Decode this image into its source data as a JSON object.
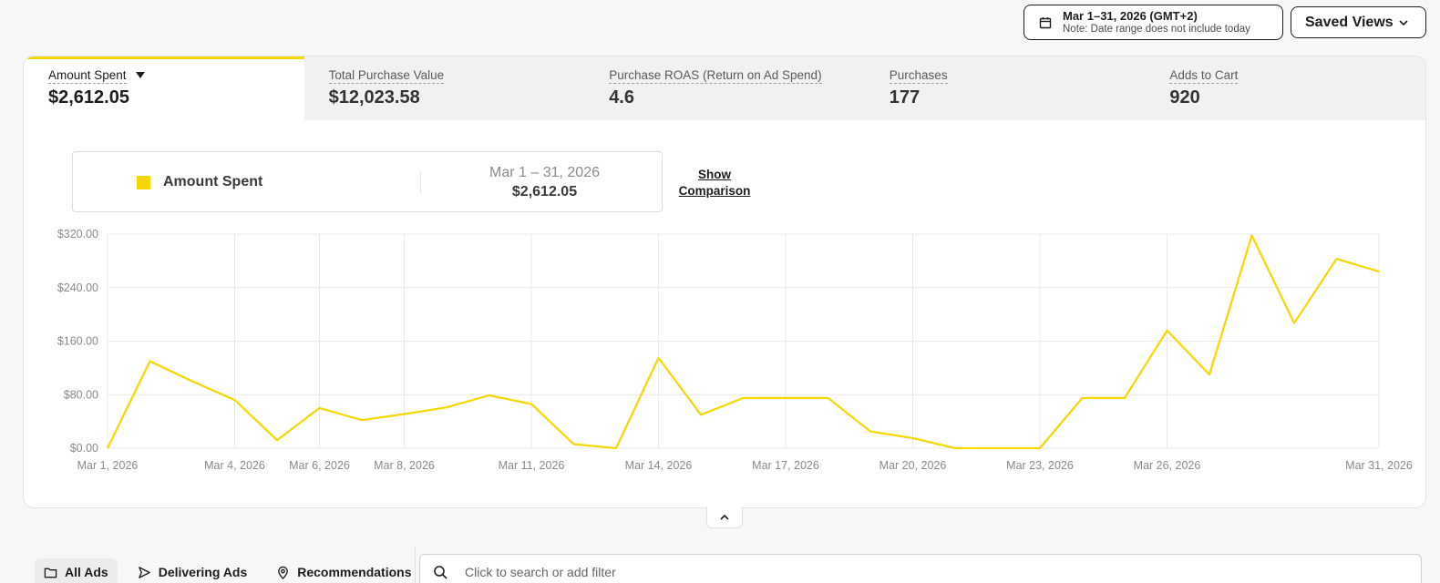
{
  "date_range": {
    "label": "Mar 1–31, 2026 (GMT+2)",
    "note": "Note: Date range does not include today",
    "icon": "calendar-icon"
  },
  "saved_views": {
    "label": "Saved Views",
    "icon": "chevron-down-icon"
  },
  "metric_tabs": [
    {
      "label": "Amount Spent",
      "value": "$2,612.05",
      "active": true
    },
    {
      "label": "Total Purchase Value",
      "value": "$12,023.58"
    },
    {
      "label": "Purchase ROAS (Return on Ad Spend)",
      "value": "4.6"
    },
    {
      "label": "Purchases",
      "value": "177"
    },
    {
      "label": "Adds to Cart",
      "value": "920"
    }
  ],
  "legend": {
    "name": "Amount Spent",
    "range": "Mar 1 – 31, 2026",
    "total": "$2,612.05"
  },
  "show_comparison": {
    "line1": "Show",
    "line2": "Comparison"
  },
  "colors": {
    "accent": "#f5d800",
    "text": "#1d1d1f",
    "grid": "#e9e9e9"
  },
  "chart_data": {
    "type": "line",
    "x_ticks": [
      "Mar 1, 2026",
      "Mar 4, 2026",
      "Mar 6, 2026",
      "Mar 8, 2026",
      "Mar 11, 2026",
      "Mar 14, 2026",
      "Mar 17, 2026",
      "Mar 20, 2026",
      "Mar 23, 2026",
      "Mar 26, 2026",
      "Mar 31, 2026"
    ],
    "y_ticks": [
      "$0.00",
      "$80.00",
      "$160.00",
      "$240.00",
      "$320.00"
    ],
    "ylim": [
      0,
      320
    ],
    "grid": true,
    "series": [
      {
        "name": "Amount Spent",
        "color": "#f5d800",
        "x": [
          "Mar 1",
          "Mar 2",
          "Mar 3",
          "Mar 4",
          "Mar 5",
          "Mar 6",
          "Mar 7",
          "Mar 8",
          "Mar 9",
          "Mar 10",
          "Mar 11",
          "Mar 12",
          "Mar 13",
          "Mar 14",
          "Mar 15",
          "Mar 16",
          "Mar 17",
          "Mar 18",
          "Mar 19",
          "Mar 20",
          "Mar 21",
          "Mar 22",
          "Mar 23",
          "Mar 24",
          "Mar 25",
          "Mar 26",
          "Mar 27",
          "Mar 28",
          "Mar 29",
          "Mar 30",
          "Mar 31"
        ],
        "values": [
          0,
          130,
          100,
          72,
          12,
          60,
          42,
          51,
          61,
          79,
          66,
          6,
          0,
          135,
          50,
          75,
          75,
          75,
          25,
          15,
          0,
          0,
          0,
          75,
          75,
          176,
          110,
          318,
          187,
          283,
          264
        ]
      }
    ]
  },
  "collapse": {
    "icon": "chevron-up-icon"
  },
  "bottom_tabs": [
    {
      "label": "All Ads",
      "icon": "folder-icon",
      "active": true
    },
    {
      "label": "Delivering Ads",
      "icon": "send-icon"
    },
    {
      "label": "Recommendations",
      "icon": "location-pin-icon"
    }
  ],
  "search": {
    "placeholder": "Click to search or add filter",
    "icon": "search-icon"
  }
}
